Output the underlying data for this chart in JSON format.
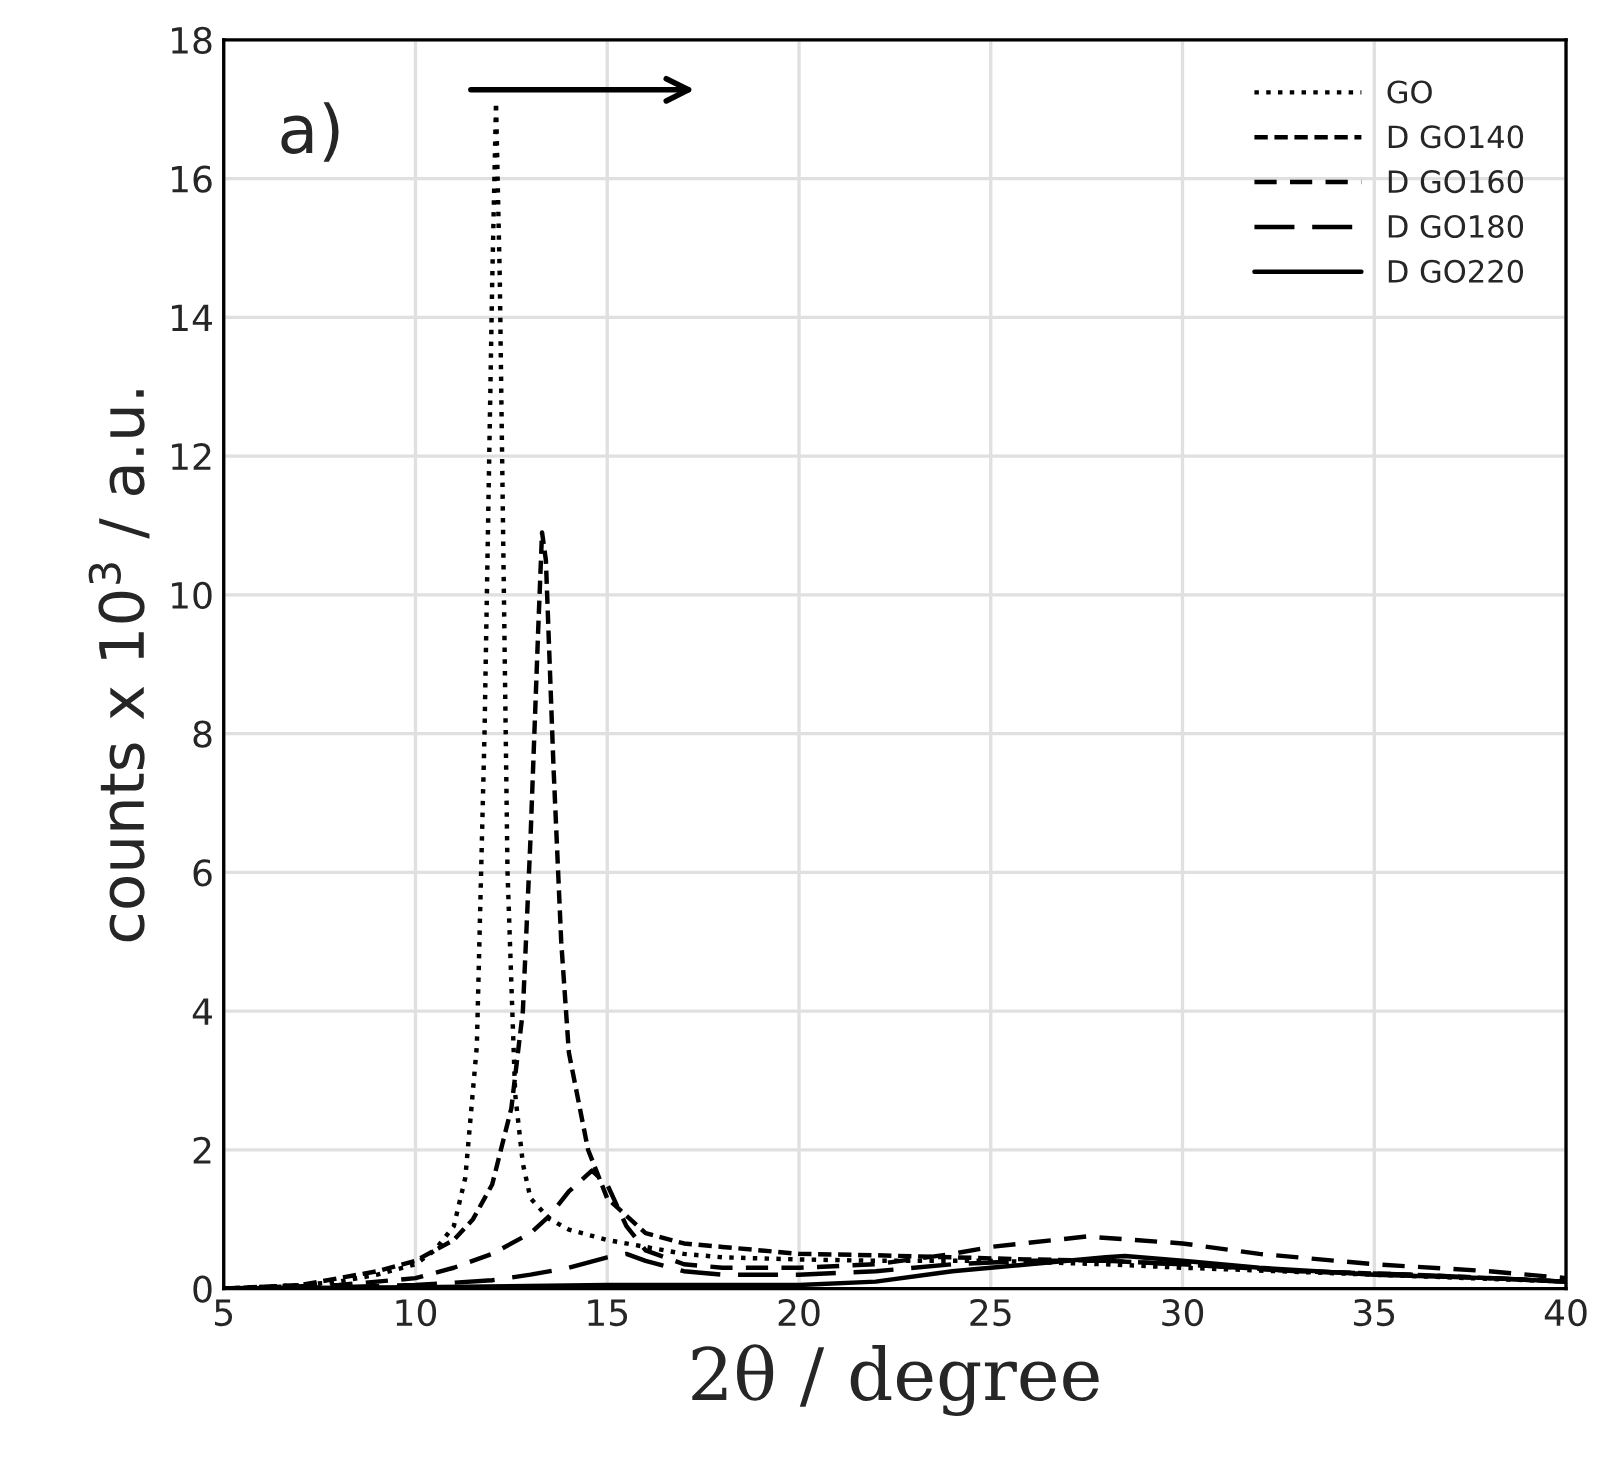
{
  "chart_data": {
    "type": "line",
    "xlabel": "2θ / degree",
    "ylabel": "counts x 10$^{3}$ / a.u.",
    "annotations": [
      "a)"
    ],
    "xlim": [
      5,
      40
    ],
    "xticks": [
      5,
      10,
      15,
      20,
      25,
      30,
      35,
      40
    ],
    "ylim": [
      0,
      18
    ],
    "yticks": [
      0,
      2,
      4,
      6,
      8,
      10,
      12,
      14,
      16,
      18
    ],
    "grid": true,
    "legend": "top right",
    "marker": "none",
    "series": [
      {
        "name": "GO",
        "color": "#000000",
        "line_style": "dotted",
        "x": [
          5,
          7,
          8,
          9,
          10,
          10.5,
          11,
          11.3,
          11.6,
          11.8,
          12.0,
          12.1,
          12.2,
          12.4,
          12.6,
          12.8,
          13.0,
          13.5,
          14,
          15,
          16,
          17,
          18,
          20,
          22,
          25,
          28,
          30,
          35,
          40
        ],
        "values": [
          0,
          0.05,
          0.1,
          0.2,
          0.35,
          0.55,
          0.9,
          1.6,
          3.5,
          8,
          14.5,
          17.1,
          14.5,
          6,
          2.8,
          1.8,
          1.3,
          1.0,
          0.85,
          0.7,
          0.6,
          0.5,
          0.45,
          0.42,
          0.4,
          0.4,
          0.35,
          0.3,
          0.2,
          0.1
        ]
      },
      {
        "name": "D GO140",
        "color": "#000000",
        "line_style": "dashed",
        "x": [
          5,
          7,
          8,
          9,
          10,
          11,
          11.5,
          12,
          12.5,
          12.8,
          13.0,
          13.2,
          13.3,
          13.4,
          13.6,
          13.8,
          14,
          14.5,
          15,
          16,
          17,
          18,
          20,
          22,
          24,
          26,
          28,
          30,
          33,
          36,
          40
        ],
        "values": [
          0,
          0.05,
          0.15,
          0.25,
          0.4,
          0.7,
          1.0,
          1.5,
          2.6,
          4,
          6.5,
          9.5,
          10.9,
          10.5,
          7.5,
          5,
          3.4,
          2.0,
          1.3,
          0.8,
          0.65,
          0.6,
          0.5,
          0.48,
          0.45,
          0.42,
          0.4,
          0.35,
          0.25,
          0.2,
          0.1
        ]
      },
      {
        "name": "D GO160",
        "color": "#000000",
        "line_style": "dashed",
        "x": [
          5,
          8,
          10,
          11,
          12,
          13,
          13.5,
          14,
          14.6,
          15,
          15.5,
          16,
          17,
          18,
          20,
          22,
          24,
          25,
          27.5,
          30,
          32,
          35,
          38,
          40
        ],
        "values": [
          0,
          0.05,
          0.15,
          0.3,
          0.5,
          0.8,
          1.05,
          1.4,
          1.7,
          1.5,
          0.9,
          0.55,
          0.35,
          0.3,
          0.3,
          0.35,
          0.5,
          0.6,
          0.75,
          0.65,
          0.5,
          0.35,
          0.25,
          0.15
        ]
      },
      {
        "name": "D GO180",
        "color": "#000000",
        "line_style": "dashed",
        "x": [
          5,
          8,
          10,
          12,
          13,
          14,
          15,
          15.5,
          16,
          17,
          18,
          20,
          22,
          24,
          26,
          28,
          30,
          33,
          36,
          40
        ],
        "values": [
          0,
          0.02,
          0.05,
          0.12,
          0.2,
          0.3,
          0.45,
          0.5,
          0.4,
          0.25,
          0.2,
          0.2,
          0.25,
          0.35,
          0.4,
          0.4,
          0.35,
          0.25,
          0.2,
          0.1
        ]
      },
      {
        "name": "D GO220",
        "color": "#000000",
        "line_style": "solid",
        "x": [
          5,
          10,
          15,
          18,
          20,
          22,
          24,
          25,
          26,
          28,
          28.5,
          30,
          32,
          35,
          38,
          40
        ],
        "values": [
          0,
          0.02,
          0.05,
          0.05,
          0.05,
          0.1,
          0.25,
          0.3,
          0.35,
          0.45,
          0.47,
          0.4,
          0.3,
          0.2,
          0.15,
          0.1
        ]
      }
    ]
  }
}
